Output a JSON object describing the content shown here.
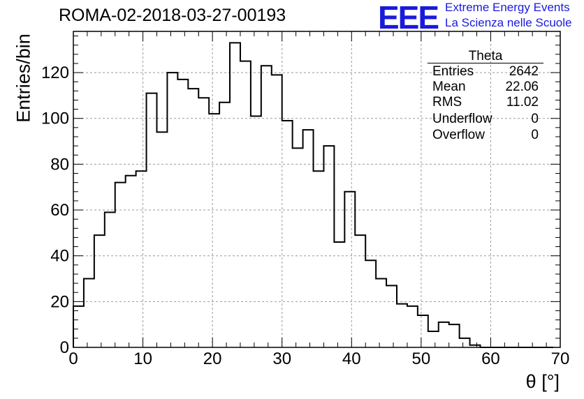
{
  "header": {
    "run_title": "ROMA-02-2018-03-27-00193",
    "logo_text": "EEE",
    "tagline_1": "Extreme Energy Events",
    "tagline_2": "La Scienza nelle Scuole"
  },
  "stats": {
    "title": "Theta",
    "rows": [
      {
        "label": "Entries",
        "value": "2642"
      },
      {
        "label": "Mean",
        "value": "22.06"
      },
      {
        "label": "RMS",
        "value": "11.02"
      },
      {
        "label": "Underflow",
        "value": "0"
      },
      {
        "label": "Overflow",
        "value": "0"
      }
    ]
  },
  "chart_data": {
    "type": "bar",
    "style": "step-histogram",
    "xlabel": "θ [°]",
    "ylabel": "Entries/bin",
    "xlim": [
      0,
      70
    ],
    "ylim": [
      0,
      138
    ],
    "x_ticks": [
      0,
      10,
      20,
      30,
      40,
      50,
      60,
      70
    ],
    "y_ticks": [
      0,
      20,
      40,
      60,
      80,
      100,
      120
    ],
    "grid": true,
    "bin_width": 1.5,
    "bin_edges_start": 0,
    "values": [
      18,
      30,
      49,
      59,
      72,
      75,
      77,
      111,
      94,
      120,
      117,
      113,
      109,
      102,
      107,
      133,
      125,
      101,
      123,
      119,
      99,
      87,
      95,
      77,
      88,
      46,
      68,
      49,
      38,
      30,
      27,
      19,
      18,
      14,
      7,
      11,
      10,
      4,
      1,
      0,
      0,
      0,
      0,
      0,
      0,
      0
    ],
    "line_color": "#000000",
    "grid_color": "#999999"
  }
}
